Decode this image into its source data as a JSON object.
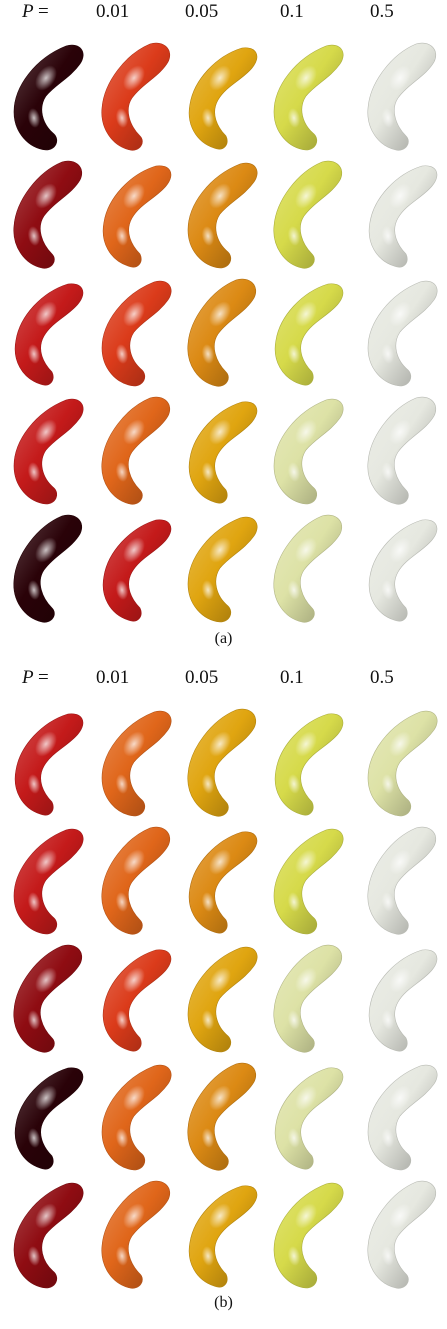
{
  "p_label": "P",
  "p_eq": "=",
  "columns": [
    "0.01",
    "0.05",
    "0.1",
    "0.5"
  ],
  "palette": {
    "near_black": "#2a0208",
    "deep_red": "#8f0c12",
    "red": "#c41a1a",
    "red_orange": "#db3b1a",
    "orange": "#e0661a",
    "orange_gold": "#dc8a14",
    "gold": "#e0a510",
    "yellow_green": "#d6da4a",
    "pale_yellow": "#dde2a6",
    "white_gray": "#e6e8e0"
  },
  "panels": [
    {
      "caption": "(a)",
      "rows": [
        [
          "near_black",
          "red_orange",
          "gold",
          "yellow_green",
          "white_gray"
        ],
        [
          "deep_red",
          "orange",
          "orange_gold",
          "yellow_green",
          "white_gray"
        ],
        [
          "red",
          "red_orange",
          "orange_gold",
          "yellow_green",
          "white_gray"
        ],
        [
          "red",
          "orange",
          "gold",
          "pale_yellow",
          "white_gray"
        ],
        [
          "near_black",
          "red",
          "gold",
          "pale_yellow",
          "white_gray"
        ]
      ]
    },
    {
      "caption": "(b)",
      "rows": [
        [
          "red",
          "orange",
          "gold",
          "yellow_green",
          "pale_yellow"
        ],
        [
          "red",
          "orange",
          "orange_gold",
          "yellow_green",
          "white_gray"
        ],
        [
          "deep_red",
          "red_orange",
          "gold",
          "pale_yellow",
          "white_gray"
        ],
        [
          "near_black",
          "orange",
          "orange_gold",
          "pale_yellow",
          "white_gray"
        ],
        [
          "deep_red",
          "orange",
          "gold",
          "yellow_green",
          "white_gray"
        ]
      ]
    }
  ]
}
